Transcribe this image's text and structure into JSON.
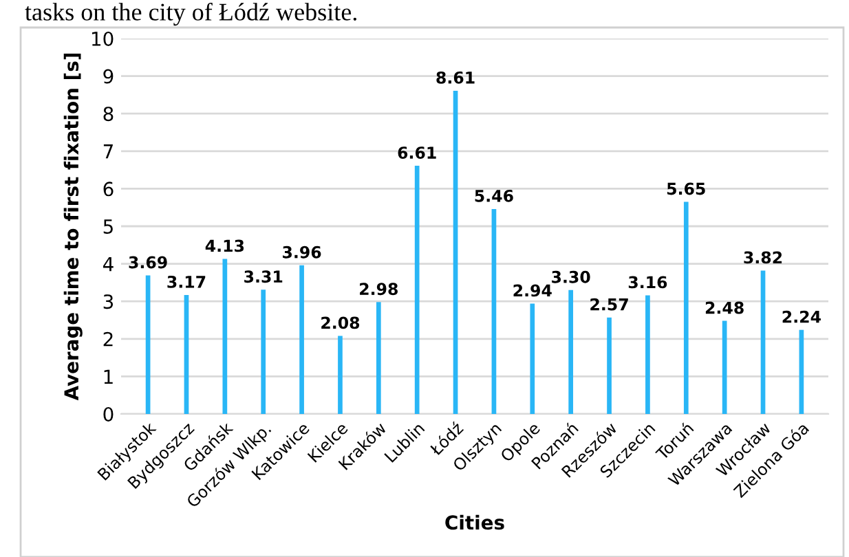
{
  "chart_data": {
    "type": "bar",
    "annotations": [
      "tasks on the city of Łódź website."
    ],
    "xlabel": "Cities",
    "ylabel": "Average time to first fixation [s]",
    "categories": [
      "Białystok",
      "Bydgoszcz",
      "Gdańsk",
      "Gorzów Wlkp.",
      "Katowice",
      "Kielce",
      "Kraków",
      "Lublin",
      "Łódź",
      "Olsztyn",
      "Opole",
      "Poznań",
      "Rzeszów",
      "Szczecin",
      "Toruń",
      "Warszawa",
      "Wrocław",
      "Zielona Góa"
    ],
    "values": [
      3.69,
      3.17,
      4.13,
      3.31,
      3.96,
      2.08,
      2.98,
      6.61,
      8.61,
      5.46,
      2.94,
      3.3,
      2.57,
      3.16,
      5.65,
      2.48,
      3.82,
      2.24
    ],
    "value_labels": [
      "3.69",
      "3.17",
      "4.13",
      "3.31",
      "3.96",
      "2.08",
      "2.98",
      "6.61",
      "8.61",
      "5.46",
      "2.94",
      "3.30",
      "2.57",
      "3.16",
      "5.65",
      "2.48",
      "3.82",
      "2.24"
    ],
    "color": "#29b6f6",
    "ylim": [
      0,
      10
    ],
    "yticks": [
      0,
      1,
      2,
      3,
      4,
      5,
      6,
      7,
      8,
      9,
      10
    ],
    "grid": "y"
  }
}
